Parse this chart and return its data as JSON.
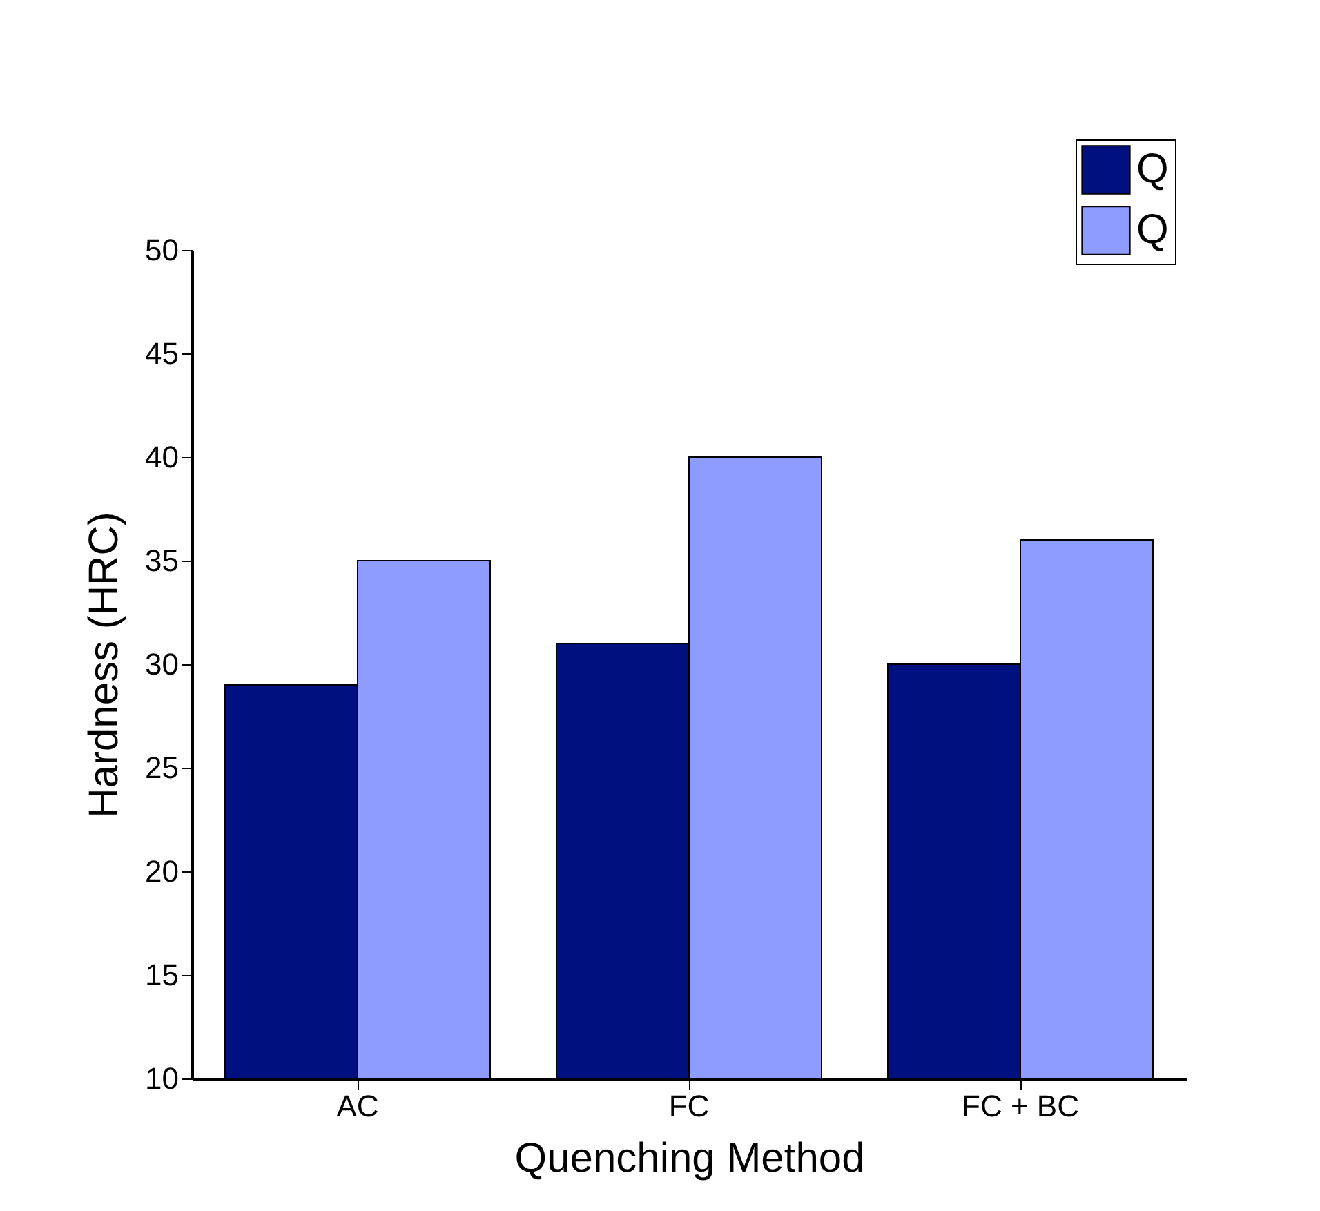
{
  "chart_data": {
    "type": "bar",
    "xlabel": "Quenching Method",
    "ylabel": "Hardness (HRC)",
    "categories": [
      "AC",
      "FC",
      "FC + BC"
    ],
    "series": [
      {
        "name": "Q",
        "color": "#00107f",
        "values": [
          29,
          31,
          30
        ]
      },
      {
        "name": "Q",
        "color": "#8f9cff",
        "values": [
          35,
          40,
          36
        ]
      }
    ],
    "ylim": [
      10,
      50
    ],
    "yticks": [
      10,
      15,
      20,
      25,
      30,
      35,
      40,
      45,
      50
    ],
    "grid": false,
    "legend": "top right"
  }
}
